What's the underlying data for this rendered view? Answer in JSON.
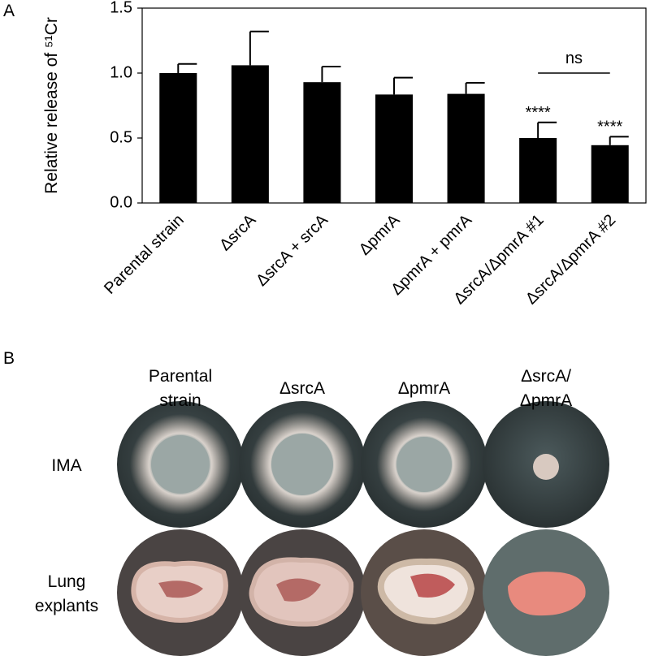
{
  "panel_labels": [
    "A",
    "B"
  ],
  "chart_data": {
    "type": "bar",
    "y_label": "Relative release of ⁵¹Cr",
    "categories": [
      "Parental strain",
      "ΔsrcA",
      "ΔsrcA + srcA",
      "ΔpmrA",
      "ΔpmrA + pmrA",
      "ΔsrcA/ΔpmrA #1",
      "ΔsrcA/ΔpmrA #2"
    ],
    "values": [
      1.0,
      1.06,
      0.93,
      0.835,
      0.84,
      0.5,
      0.445
    ],
    "errors": [
      0.07,
      0.26,
      0.12,
      0.13,
      0.085,
      0.12,
      0.065
    ],
    "color": "#000000",
    "ylim": [
      0,
      1.5
    ],
    "yticks": [
      {
        "value": 0,
        "label": "0.0"
      },
      0.5,
      {
        "value": 1,
        "label": "1.0"
      },
      1.5
    ],
    "annotations": [
      "****",
      "****",
      "ns"
    ]
  },
  "panel_b": {
    "columns": [
      [
        "Parental",
        "strain"
      ],
      [
        "ΔsrcA"
      ],
      [
        "ΔpmrA"
      ],
      [
        "ΔsrcA/",
        "ΔpmrA"
      ]
    ],
    "rows": [
      [
        "IMA"
      ],
      [
        "Lung",
        "explants"
      ]
    ]
  }
}
